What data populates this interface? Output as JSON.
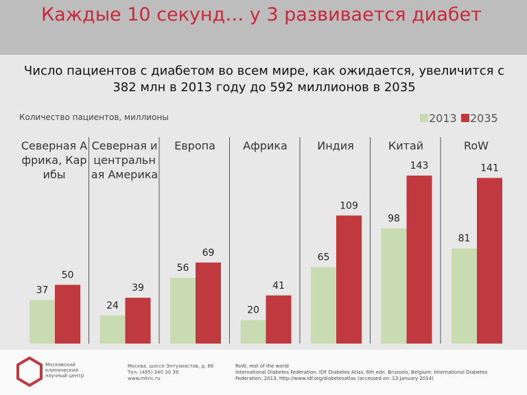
{
  "header": {
    "title": "Каждые 10 секунд… у 3 развивается диабет"
  },
  "chart_data": {
    "type": "bar",
    "subtitle": "Число пациентов с диабетом во всем мире, как ожидается, увеличится с 382 млн в 2013 году до 592 миллионов в 2035",
    "y_label": "Количество пациентов, миллионы",
    "categories": [
      "Северная Африка, Карибы",
      "Северная и центральная Америка",
      "Европа",
      "Африка",
      "Индия",
      "Китай",
      "RoW"
    ],
    "series": [
      {
        "name": "2013",
        "color": "#c9dbb0",
        "values": [
          37,
          24,
          56,
          20,
          65,
          98,
          81
        ]
      },
      {
        "name": "2035",
        "color": "#c0393f",
        "values": [
          50,
          39,
          69,
          41,
          109,
          143,
          141
        ]
      }
    ],
    "legend": "top-right"
  },
  "footer": {
    "logo_text": "Московский клинический научный центр",
    "address": [
      "Москва, шоссе Энтузиастов, д. 86",
      "Тел. (495) 340 30 39",
      "www.mknc.ru"
    ],
    "source": [
      "RoW, rest of the world",
      "International Diabetes Federation. IDF Diabetes Atlas, 6th edn. Brussels, Belgium: International Diabetes Federation, 2013. http://www.idf.org/diabetesatlas (accessed on: 13 January 2014)"
    ]
  }
}
